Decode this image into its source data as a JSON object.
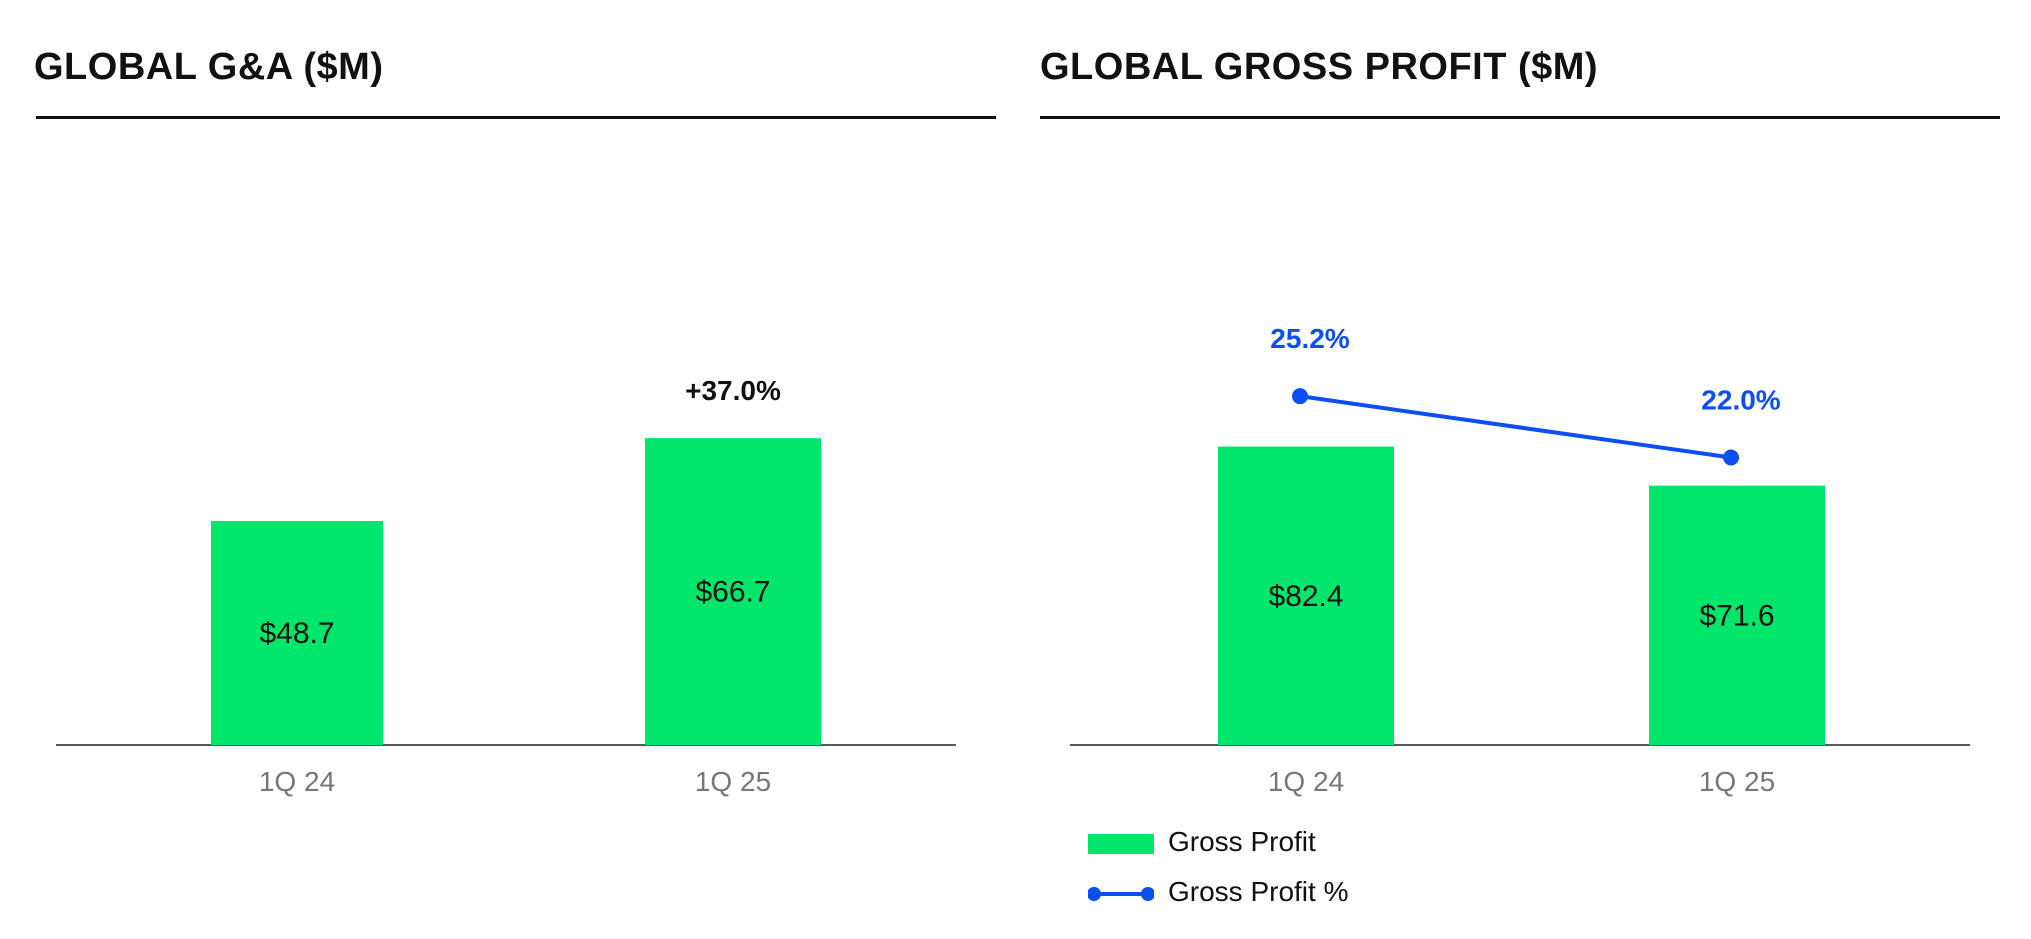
{
  "colors": {
    "bar": "#00e66a",
    "line": "#0b4ff0",
    "text": "#111111",
    "axis_label": "#777777"
  },
  "left_chart": {
    "title": "GLOBAL G&A ($M)",
    "growth_label": "+37.0%"
  },
  "right_chart": {
    "title": "GLOBAL GROSS PROFIT ($M)",
    "legend": {
      "bar_label": "Gross Profit",
      "line_label": "Gross Profit %"
    }
  },
  "chart_data": [
    {
      "type": "bar",
      "title": "GLOBAL G&A ($M)",
      "categories": [
        "1Q 24",
        "1Q 25"
      ],
      "values": [
        48.7,
        66.7
      ],
      "value_labels": [
        "$48.7",
        "$66.7"
      ],
      "annotation": "+37.0%",
      "ylim": [
        0,
        100
      ],
      "grid": false
    },
    {
      "type": "bar",
      "title": "GLOBAL GROSS PROFIT ($M)",
      "categories": [
        "1Q 24",
        "1Q 25"
      ],
      "series": [
        {
          "name": "Gross Profit",
          "type": "bar",
          "values": [
            82.4,
            71.6
          ],
          "labels": [
            "$82.4",
            "$71.6"
          ]
        },
        {
          "name": "Gross Profit %",
          "type": "line",
          "values": [
            25.2,
            22.0
          ],
          "labels": [
            "25.2%",
            "22.0%"
          ]
        }
      ],
      "ylim": [
        0,
        127
      ],
      "y2lim": [
        7,
        31
      ],
      "grid": false,
      "legend_position": "bottom-left"
    }
  ]
}
